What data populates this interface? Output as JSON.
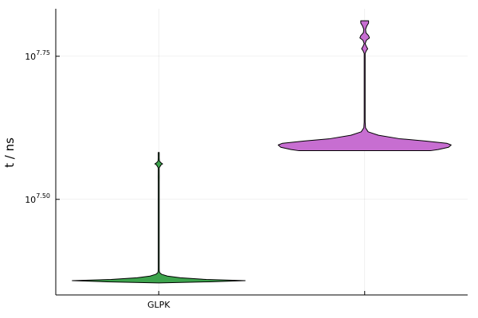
{
  "chart_data": {
    "type": "violin",
    "title": "",
    "ylabel": "t / ns",
    "xlabel": "",
    "y_scale": "log10",
    "ylim": [
      7.333,
      7.833
    ],
    "y_ticks": [
      {
        "base": "10",
        "exp": "7.50",
        "value": 7.5
      },
      {
        "base": "10",
        "exp": "7.75",
        "value": 7.75
      }
    ],
    "categories": [
      "GLPK",
      ""
    ],
    "grid": true,
    "legend": "none",
    "series": [
      {
        "category": "GLPK",
        "color": "#3da44d",
        "min": 7.354,
        "max": 7.582,
        "profile": [
          [
            7.354,
            0.0
          ],
          [
            7.356,
            0.6
          ],
          [
            7.358,
            1.0
          ],
          [
            7.36,
            0.55
          ],
          [
            7.363,
            0.25
          ],
          [
            7.366,
            0.1
          ],
          [
            7.369,
            0.035
          ],
          [
            7.372,
            0.01
          ],
          [
            7.376,
            0.006
          ],
          [
            7.38,
            0.0
          ],
          [
            7.4,
            0.0
          ],
          [
            7.44,
            0.0
          ],
          [
            7.51,
            0.0
          ],
          [
            7.53,
            0.0
          ],
          [
            7.54,
            0.006
          ],
          [
            7.545,
            0.0
          ],
          [
            7.555,
            0.0
          ],
          [
            7.56,
            0.025
          ],
          [
            7.562,
            0.045
          ],
          [
            7.564,
            0.025
          ],
          [
            7.567,
            0.008
          ],
          [
            7.572,
            0.0
          ],
          [
            7.575,
            0.0
          ],
          [
            7.578,
            0.006
          ],
          [
            7.582,
            0.0
          ]
        ]
      },
      {
        "category": "",
        "color": "#c76ed1",
        "min": 7.585,
        "max": 7.812,
        "profile": [
          [
            7.585,
            0.76
          ],
          [
            7.587,
            0.85
          ],
          [
            7.591,
            0.97
          ],
          [
            7.595,
            1.0
          ],
          [
            7.598,
            0.95
          ],
          [
            7.602,
            0.7
          ],
          [
            7.606,
            0.4
          ],
          [
            7.612,
            0.16
          ],
          [
            7.618,
            0.04
          ],
          [
            7.625,
            0.01
          ],
          [
            7.635,
            0.0
          ],
          [
            7.7,
            0.0
          ],
          [
            7.755,
            0.0
          ],
          [
            7.76,
            0.02
          ],
          [
            7.763,
            0.035
          ],
          [
            7.767,
            0.02
          ],
          [
            7.772,
            0.004
          ],
          [
            7.778,
            0.02
          ],
          [
            7.782,
            0.055
          ],
          [
            7.786,
            0.045
          ],
          [
            7.791,
            0.015
          ],
          [
            7.797,
            0.01
          ],
          [
            7.803,
            0.025
          ],
          [
            7.808,
            0.045
          ],
          [
            7.812,
            0.045
          ]
        ]
      }
    ]
  }
}
